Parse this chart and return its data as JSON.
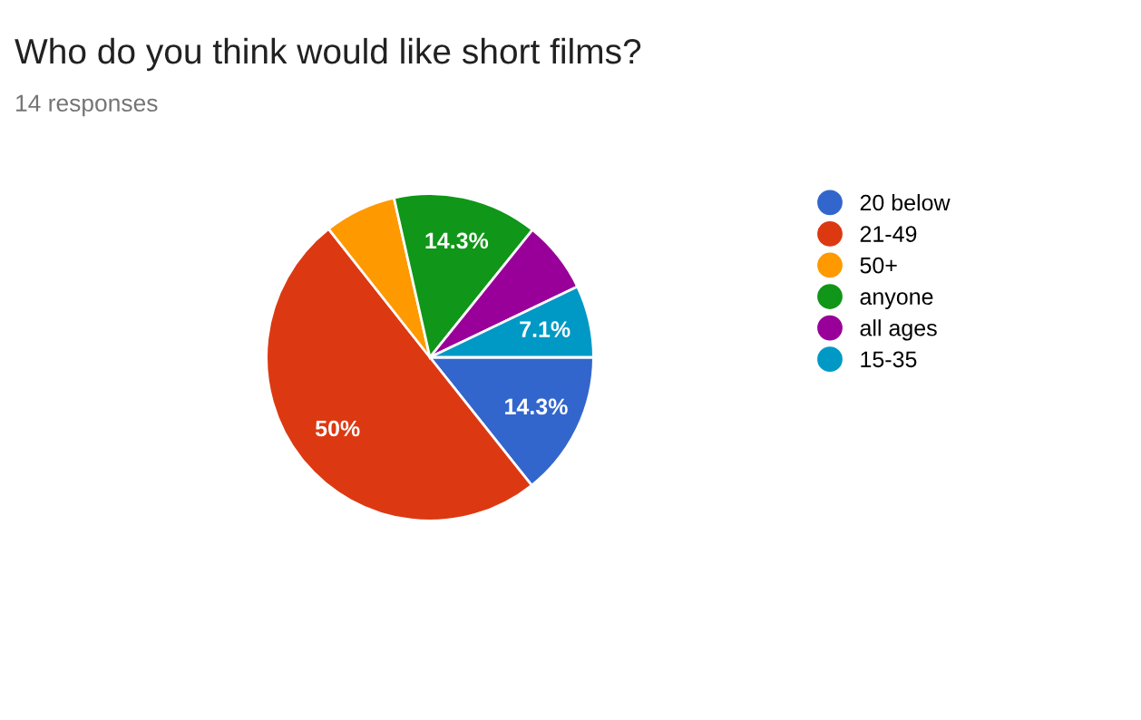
{
  "chart_data": {
    "type": "pie",
    "title": "Who do you think would like short films?",
    "subtitle": "14 responses",
    "categories": [
      "20 below",
      "21-49",
      "50+",
      "anyone",
      "all ages",
      "15-35"
    ],
    "values": [
      14.3,
      50,
      7.1,
      14.3,
      7.1,
      7.1
    ],
    "value_labels": [
      "14.3%",
      "50%",
      null,
      "14.3%",
      null,
      "7.1%"
    ],
    "colors": [
      "#3366cc",
      "#dc3912",
      "#ff9900",
      "#109618",
      "#990099",
      "#0099c6"
    ],
    "legend": "right"
  }
}
